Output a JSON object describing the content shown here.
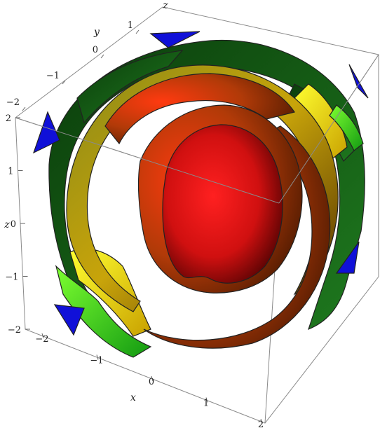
{
  "chart_data": {
    "type": "3d-contour-surfaces",
    "x_axis": {
      "label": "x",
      "range": [
        -2,
        2
      ],
      "ticks": [
        "−2",
        "−1",
        "0",
        "1",
        "2"
      ]
    },
    "y_axis": {
      "label": "y",
      "range": [
        -2,
        2
      ],
      "ticks": [
        "−2",
        "−1",
        "0",
        "1"
      ]
    },
    "z_axis": {
      "label": "z",
      "range": [
        -2,
        2
      ],
      "ticks": [
        "−2",
        "−1",
        "0",
        "1",
        "2"
      ]
    },
    "box": true,
    "colors": {
      "inner": "#ff1a1a",
      "middle": "#ff8c00",
      "outer": "#ffff00",
      "fringe": "#22cc22",
      "corner": "#1a1aee"
    }
  }
}
